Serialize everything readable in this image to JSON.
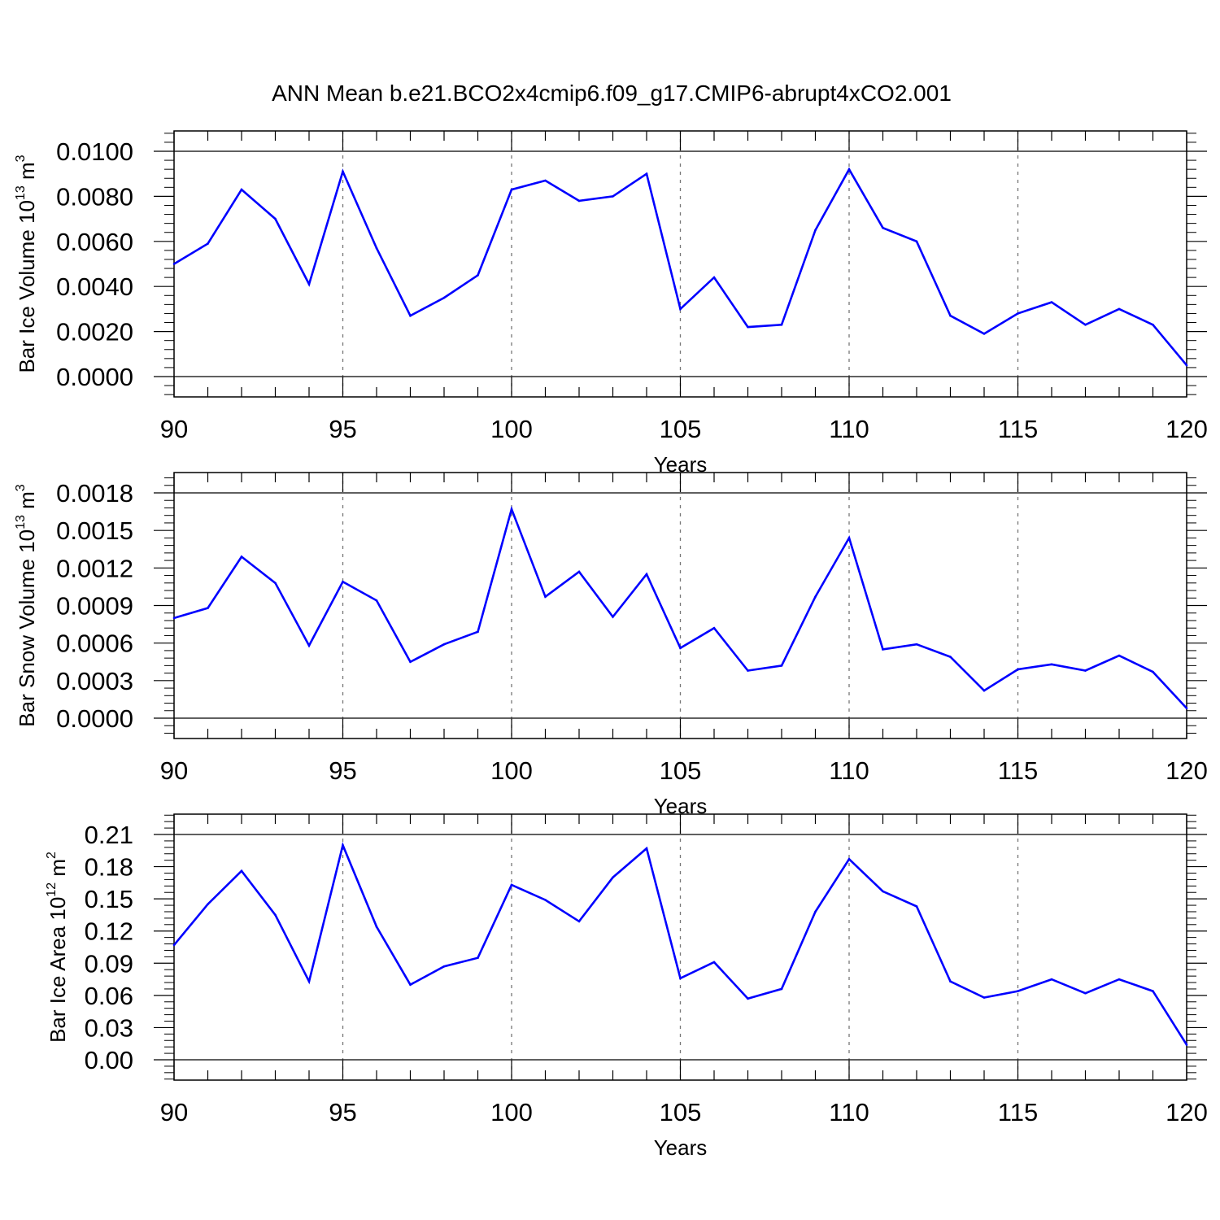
{
  "title": "ANN Mean b.e21.BCO2x4cmip6.f09_g17.CMIP6-abrupt4xCO2.001",
  "line_color": "#0000ff",
  "chart_data": [
    {
      "type": "line",
      "xlabel": "Years",
      "ylabel_main": "Bar Ice Volume 10",
      "ylabel_exp": "13",
      "ylabel_unit": " m",
      "ylabel_unit_exp": "3",
      "xlim": [
        90,
        120
      ],
      "ylim": [
        0,
        0.01
      ],
      "yticks": [
        "0.0000",
        "0.0020",
        "0.0040",
        "0.0060",
        "0.0080",
        "0.0100"
      ],
      "ytick_values": [
        0,
        0.002,
        0.004,
        0.006,
        0.008,
        0.01
      ],
      "xticks": [
        "90",
        "95",
        "100",
        "105",
        "110",
        "115",
        "120"
      ],
      "xtick_values": [
        90,
        95,
        100,
        105,
        110,
        115,
        120
      ],
      "x": [
        90,
        91,
        92,
        93,
        94,
        95,
        96,
        97,
        98,
        99,
        100,
        101,
        102,
        103,
        104,
        105,
        106,
        107,
        108,
        109,
        110,
        111,
        112,
        113,
        114,
        115,
        116,
        117,
        118,
        119,
        120
      ],
      "y": [
        0.005,
        0.0059,
        0.0083,
        0.007,
        0.0041,
        0.0091,
        0.0057,
        0.0027,
        0.0035,
        0.0045,
        0.0083,
        0.0087,
        0.0078,
        0.008,
        0.009,
        0.003,
        0.0044,
        0.0022,
        0.0023,
        0.0065,
        0.0092,
        0.0066,
        0.006,
        0.0027,
        0.0019,
        0.0028,
        0.0033,
        0.0023,
        0.003,
        0.0023,
        0.0005
      ]
    },
    {
      "type": "line",
      "xlabel": "Years",
      "ylabel_main": "Bar Snow Volume 10",
      "ylabel_exp": "13",
      "ylabel_unit": " m",
      "ylabel_unit_exp": "3",
      "xlim": [
        90,
        120
      ],
      "ylim": [
        0,
        0.0018
      ],
      "yticks": [
        "0.0000",
        "0.0003",
        "0.0006",
        "0.0009",
        "0.0012",
        "0.0015",
        "0.0018"
      ],
      "ytick_values": [
        0,
        0.0003,
        0.0006,
        0.0009,
        0.0012,
        0.0015,
        0.0018
      ],
      "xticks": [
        "90",
        "95",
        "100",
        "105",
        "110",
        "115",
        "120"
      ],
      "xtick_values": [
        90,
        95,
        100,
        105,
        110,
        115,
        120
      ],
      "x": [
        90,
        91,
        92,
        93,
        94,
        95,
        96,
        97,
        98,
        99,
        100,
        101,
        102,
        103,
        104,
        105,
        106,
        107,
        108,
        109,
        110,
        111,
        112,
        113,
        114,
        115,
        116,
        117,
        118,
        119,
        120
      ],
      "y": [
        0.0008,
        0.00088,
        0.00129,
        0.00108,
        0.00058,
        0.00109,
        0.00094,
        0.00045,
        0.00059,
        0.00069,
        0.00167,
        0.00097,
        0.00117,
        0.00081,
        0.00115,
        0.00056,
        0.00072,
        0.00038,
        0.00042,
        0.00097,
        0.00144,
        0.00055,
        0.00059,
        0.00049,
        0.00022,
        0.00039,
        0.00043,
        0.00038,
        0.0005,
        0.00037,
        8e-05
      ]
    },
    {
      "type": "line",
      "xlabel": "Years",
      "ylabel_main": "Bar Ice Area 10",
      "ylabel_exp": "12",
      "ylabel_unit": " m",
      "ylabel_unit_exp": "2",
      "xlim": [
        90,
        120
      ],
      "ylim": [
        0,
        0.21
      ],
      "yticks": [
        "0.00",
        "0.03",
        "0.06",
        "0.09",
        "0.12",
        "0.15",
        "0.18",
        "0.21"
      ],
      "ytick_values": [
        0,
        0.03,
        0.06,
        0.09,
        0.12,
        0.15,
        0.18,
        0.21
      ],
      "xticks": [
        "90",
        "95",
        "100",
        "105",
        "110",
        "115",
        "120"
      ],
      "xtick_values": [
        90,
        95,
        100,
        105,
        110,
        115,
        120
      ],
      "x": [
        90,
        91,
        92,
        93,
        94,
        95,
        96,
        97,
        98,
        99,
        100,
        101,
        102,
        103,
        104,
        105,
        106,
        107,
        108,
        109,
        110,
        111,
        112,
        113,
        114,
        115,
        116,
        117,
        118,
        119,
        120
      ],
      "y": [
        0.107,
        0.145,
        0.176,
        0.135,
        0.073,
        0.2,
        0.124,
        0.07,
        0.087,
        0.095,
        0.163,
        0.149,
        0.129,
        0.17,
        0.197,
        0.076,
        0.091,
        0.057,
        0.066,
        0.138,
        0.187,
        0.157,
        0.143,
        0.073,
        0.058,
        0.064,
        0.075,
        0.062,
        0.075,
        0.064,
        0.014
      ]
    }
  ]
}
